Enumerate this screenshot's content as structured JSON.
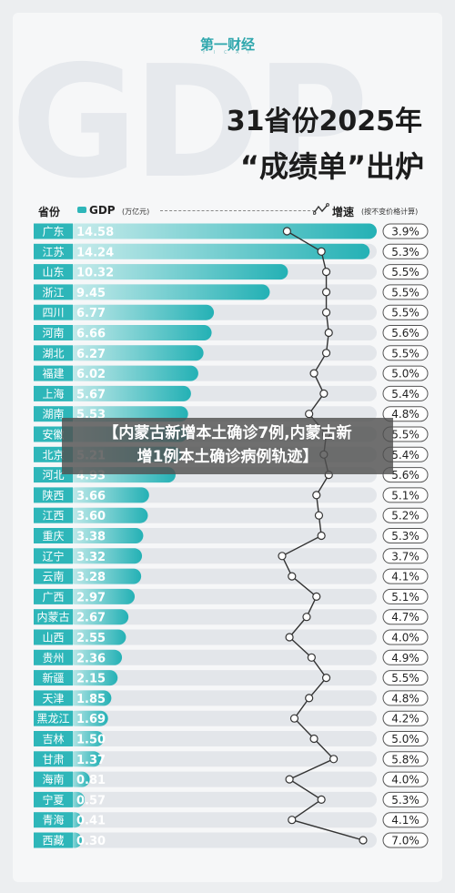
{
  "brand": {
    "logo": "第一财经",
    "logo_sub": "Y I C A I"
  },
  "background_text": "GDP",
  "title": {
    "line1": "31省份2025年",
    "line2": "“成绩单”出炉"
  },
  "header": {
    "province_label": "省份",
    "gdp_label": "GDP",
    "gdp_unit": "(万亿元)",
    "growth_label": "增速",
    "growth_unit": "(按不变价格计算)",
    "growth_icon": "line-trend-icon"
  },
  "overlay": {
    "line1": "【内蒙古新增本土确诊7例,内蒙古新",
    "line2": "增1例本土确诊病例轨迹】"
  },
  "colors": {
    "label_bg": "#2eb6b9",
    "bar_start": "#c9ecec",
    "bar_end": "#24b1b5",
    "track": "#e3e6ea",
    "growth_line": "#333333"
  },
  "chart_data": {
    "type": "bar",
    "categories": [
      "广东",
      "江苏",
      "山东",
      "浙江",
      "四川",
      "河南",
      "湖北",
      "福建",
      "上海",
      "湖南",
      "安徽",
      "北京",
      "河北",
      "陕西",
      "江西",
      "重庆",
      "辽宁",
      "云南",
      "广西",
      "内蒙古",
      "山西",
      "贵州",
      "新疆",
      "天津",
      "黑龙江",
      "吉林",
      "甘肃",
      "海南",
      "宁夏",
      "青海",
      "西藏"
    ],
    "series": [
      {
        "name": "GDP",
        "unit": "万亿元",
        "values": [
          14.58,
          14.24,
          10.32,
          9.45,
          6.77,
          6.66,
          6.27,
          6.02,
          5.67,
          5.53,
          5.5,
          5.21,
          4.93,
          3.66,
          3.6,
          3.38,
          3.32,
          3.28,
          2.97,
          2.67,
          2.55,
          2.36,
          2.15,
          1.85,
          1.69,
          1.5,
          1.37,
          0.81,
          0.57,
          0.41,
          0.3
        ]
      },
      {
        "name": "增速",
        "unit": "%",
        "values": [
          3.9,
          5.3,
          5.5,
          5.5,
          5.5,
          5.6,
          5.5,
          5.0,
          5.4,
          4.8,
          5.5,
          5.4,
          5.6,
          5.1,
          5.2,
          5.3,
          3.7,
          4.1,
          5.1,
          4.7,
          4.0,
          4.9,
          5.5,
          4.8,
          4.2,
          5.0,
          5.8,
          4.0,
          5.3,
          4.1,
          7.0
        ]
      }
    ],
    "gdp_labels": [
      "14.58",
      "14.24",
      "10.32",
      "9.45",
      "6.77",
      "6.66",
      "6.27",
      "6.02",
      "5.67",
      "5.53",
      "",
      "5.21",
      "4.93",
      "3.66",
      "3.60",
      "3.38",
      "3.32",
      "3.28",
      "2.97",
      "2.67",
      "2.55",
      "2.36",
      "2.15",
      "1.85",
      "1.69",
      "1.50",
      "1.37",
      "0.81",
      "0.57",
      "0.41",
      "0.30"
    ],
    "growth_labels": [
      "3.9%",
      "5.3%",
      "5.5%",
      "5.5%",
      "5.5%",
      "5.6%",
      "5.5%",
      "5.0%",
      "5.4%",
      "4.8%",
      "5.5%",
      "5.4%",
      "5.6%",
      "5.1%",
      "5.2%",
      "5.3%",
      "3.7%",
      "4.1%",
      "5.1%",
      "4.7%",
      "4.0%",
      "4.9%",
      "5.5%",
      "4.8%",
      "4.2%",
      "5.0%",
      "5.8%",
      "4.0%",
      "5.3%",
      "4.1%",
      "7.0%"
    ],
    "gdp_max": 14.58,
    "growth_range": [
      3.7,
      7.0
    ]
  }
}
